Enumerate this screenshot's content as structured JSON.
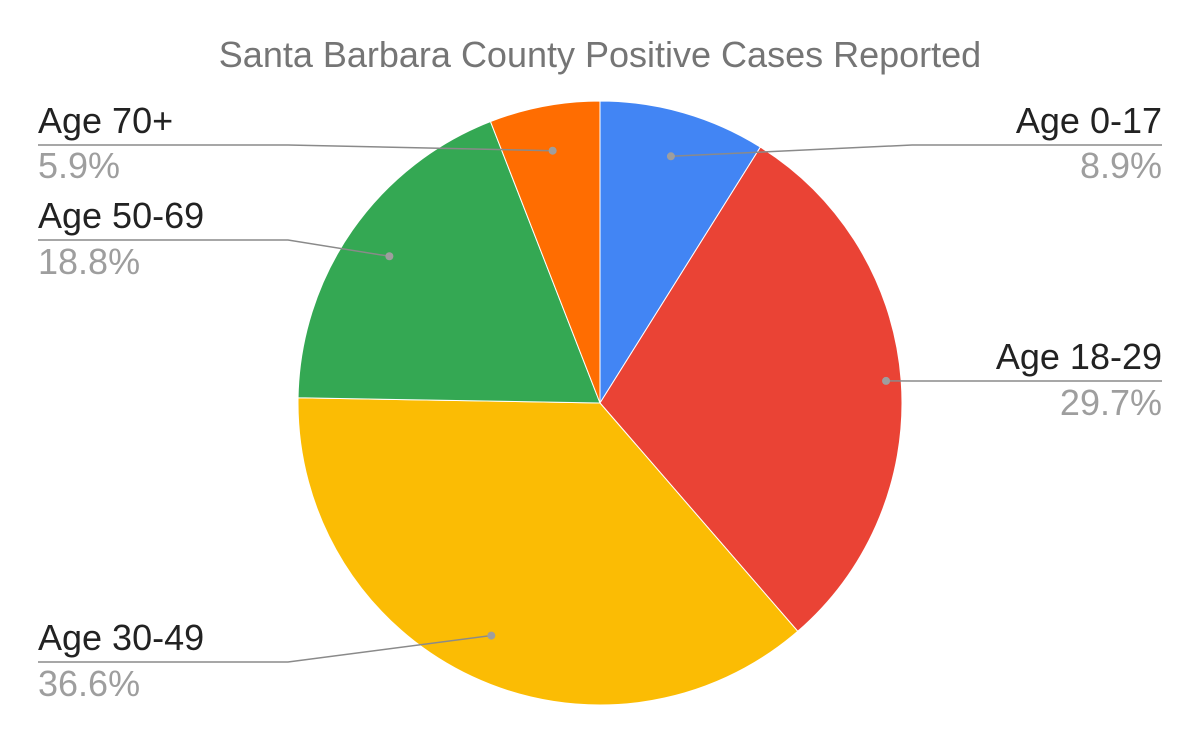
{
  "chart_data": {
    "type": "pie",
    "title": "Santa Barbara County Positive Cases Reported",
    "slices": [
      {
        "label": "Age 0-17",
        "value": 8.9,
        "display": "8.9%",
        "color": "#4285F4"
      },
      {
        "label": "Age 18-29",
        "value": 29.7,
        "display": "29.7%",
        "color": "#EA4335"
      },
      {
        "label": "Age 30-49",
        "value": 36.6,
        "display": "36.6%",
        "color": "#FBBC04"
      },
      {
        "label": "Age 50-69",
        "value": 18.8,
        "display": "18.8%",
        "color": "#34A853"
      },
      {
        "label": "Age 70+",
        "value": 5.9,
        "display": "5.9%",
        "color": "#FF6D01"
      }
    ],
    "start_angle": "12 o'clock",
    "direction": "clockwise",
    "legend": "none",
    "label_placement": "outside with leader lines"
  }
}
